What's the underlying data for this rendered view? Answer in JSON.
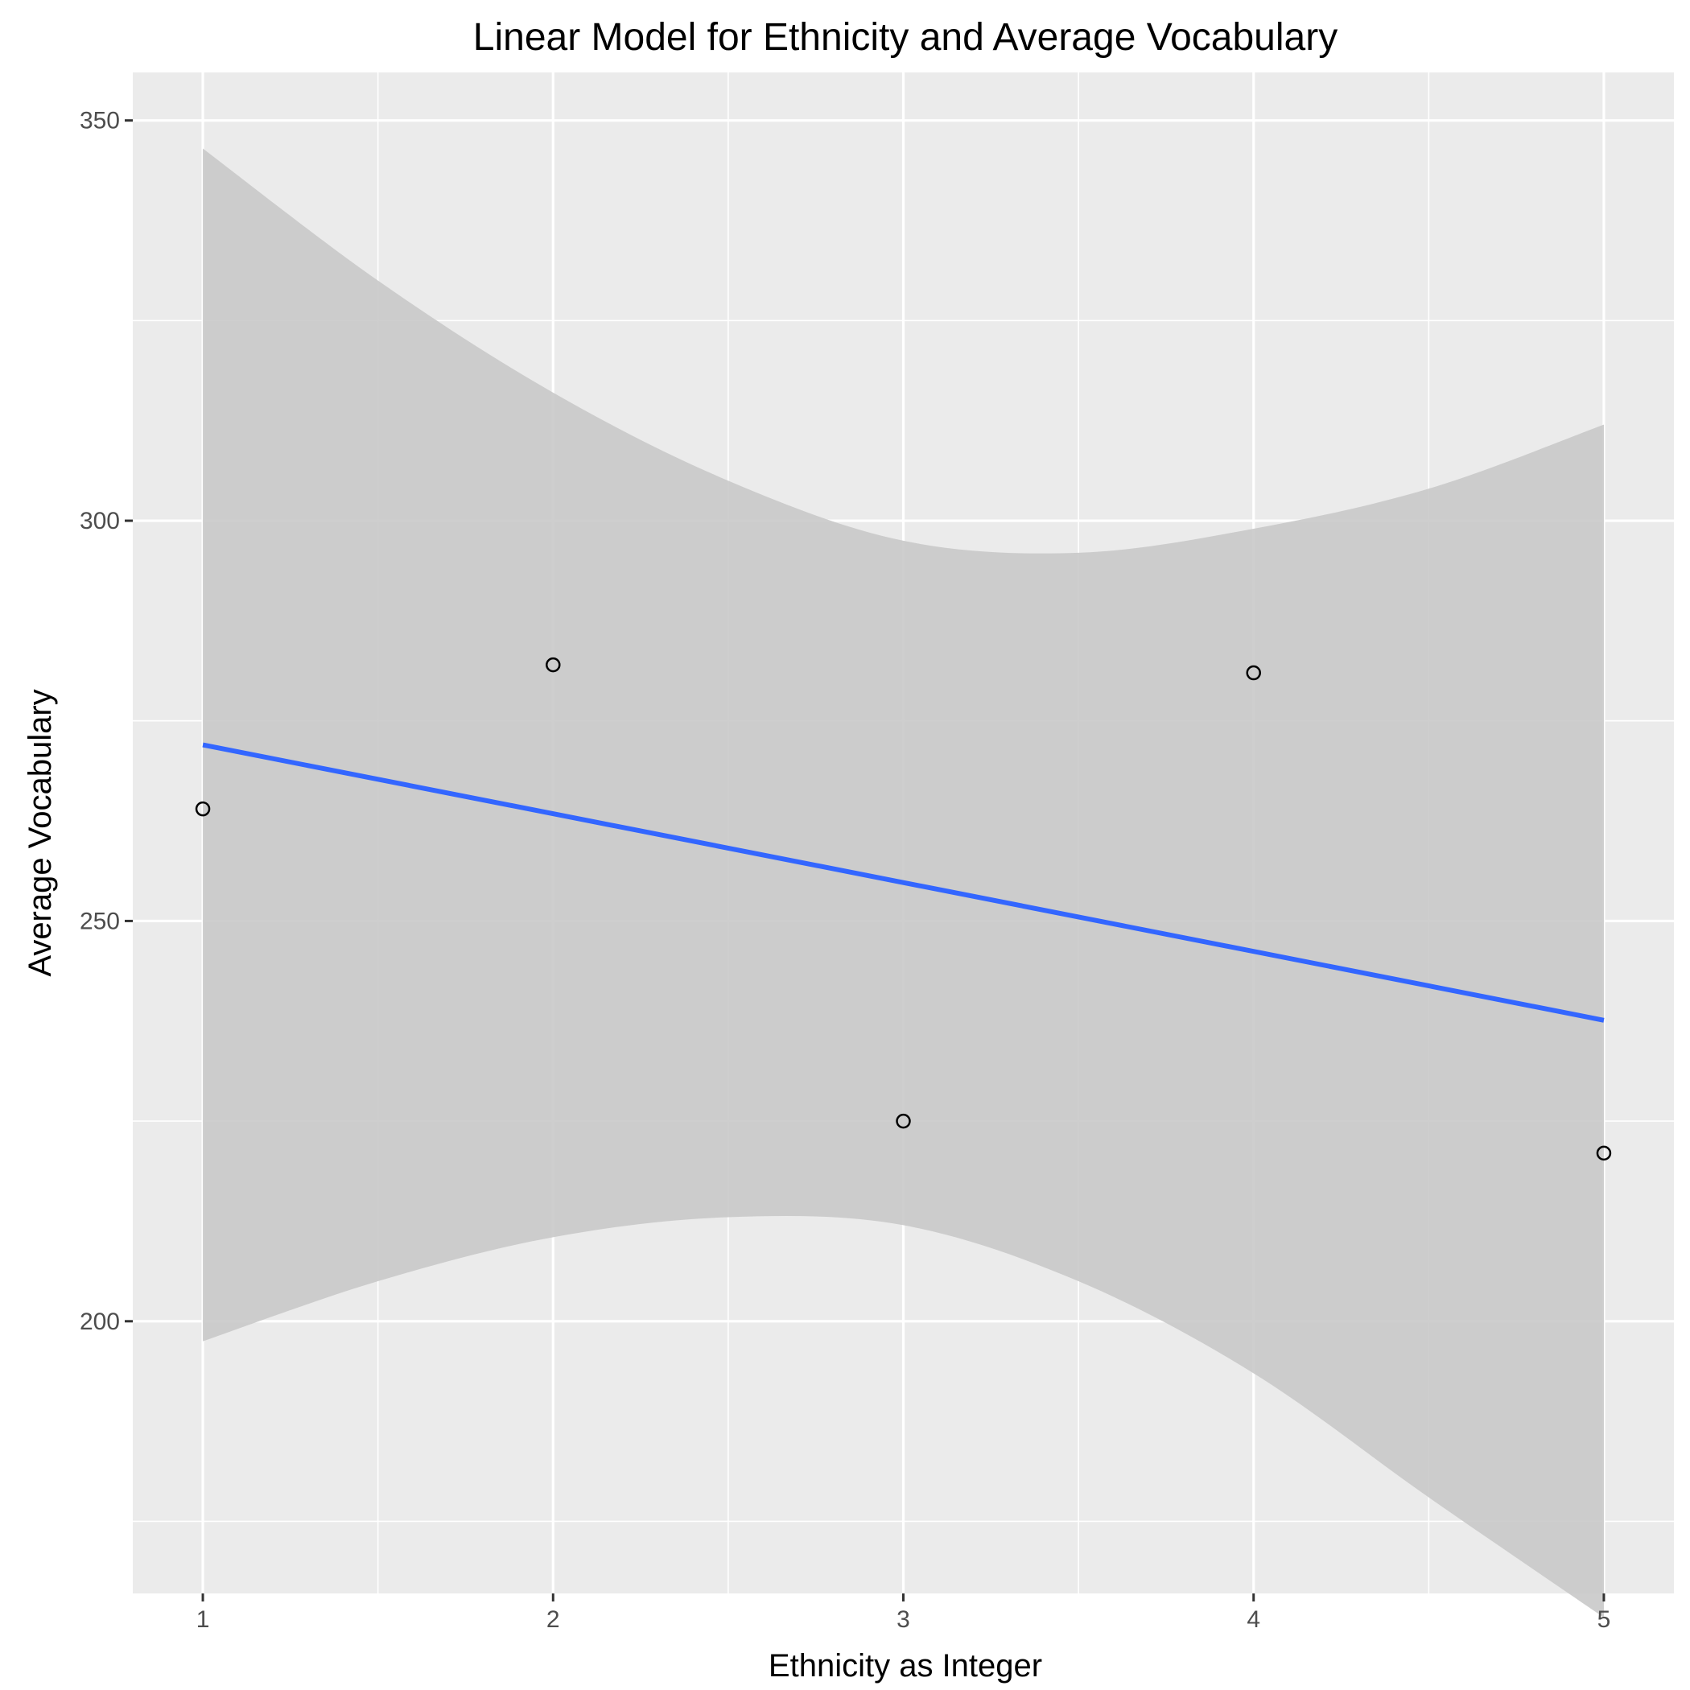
{
  "chart_data": {
    "type": "scatter",
    "title": "Linear Model for Ethnicity and Average Vocabulary",
    "xlabel": "Ethnicity as Integer",
    "ylabel": "Average Vocabulary",
    "xlim": [
      0.8,
      5.2
    ],
    "ylim": [
      166,
      356
    ],
    "x_ticks": [
      1,
      2,
      3,
      4,
      5
    ],
    "y_ticks": [
      200,
      250,
      300,
      350
    ],
    "x_minor": [
      1.5,
      2.5,
      3.5,
      4.5
    ],
    "y_minor": [
      175,
      225,
      275,
      325
    ],
    "grid": true,
    "points": {
      "x": [
        1,
        2,
        3,
        4,
        5
      ],
      "y": [
        264,
        282,
        225,
        281,
        221
      ]
    },
    "fit_line": {
      "x": [
        1,
        5
      ],
      "y": [
        272,
        237.6
      ]
    },
    "confidence_band": {
      "x": [
        1.0,
        1.5,
        2.0,
        2.5,
        3.0,
        3.5,
        4.0,
        4.5,
        5.0
      ],
      "upper": [
        346.5,
        330,
        316,
        305,
        297.5,
        296,
        299,
        304,
        312
      ],
      "lower": [
        197.5,
        205,
        210.5,
        213,
        212,
        205,
        193.5,
        178,
        163
      ]
    },
    "colors": {
      "panel": "#EBEBEB",
      "grid": "#FFFFFF",
      "band": "#C9C9C9",
      "line": "#3366FF",
      "point": "#000000",
      "tick": "#4D4D4D"
    }
  }
}
